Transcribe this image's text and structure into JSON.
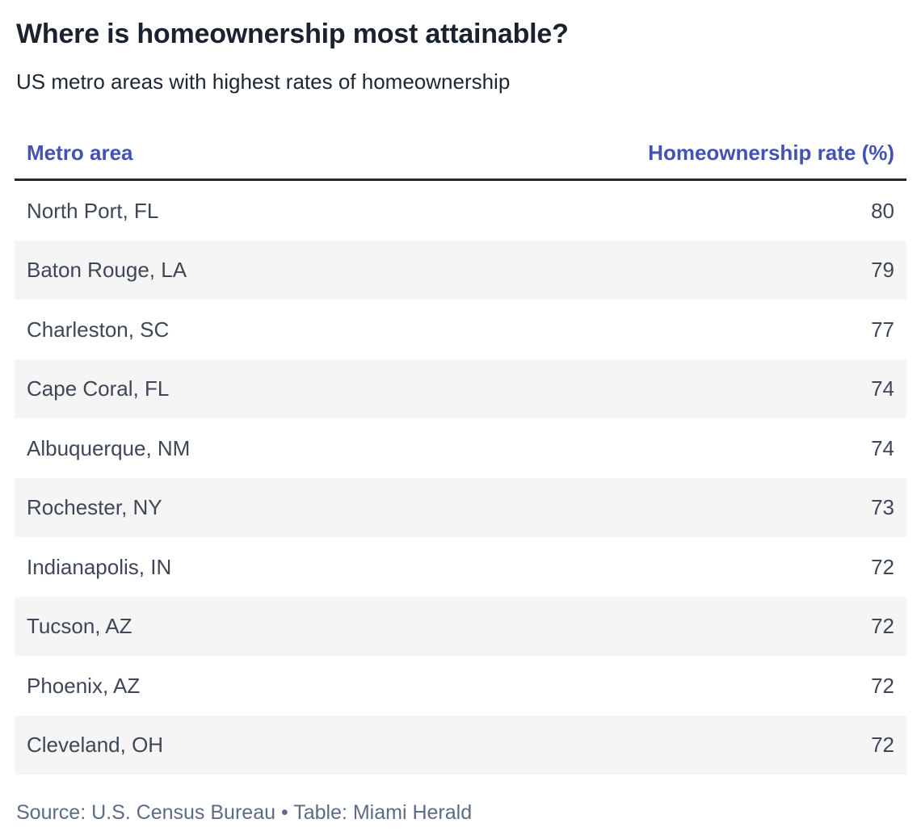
{
  "header": {
    "title": "Where is homeownership most attainable?",
    "subtitle": "US metro areas with highest rates of homeownership"
  },
  "chart_data": {
    "type": "table",
    "title": "Where is homeownership most attainable?",
    "subtitle": "US metro areas with highest rates of homeownership",
    "columns": [
      "Metro area",
      "Homeownership rate (%)"
    ],
    "rows": [
      {
        "metro": "North Port, FL",
        "rate": 80
      },
      {
        "metro": "Baton Rouge, LA",
        "rate": 79
      },
      {
        "metro": "Charleston, SC",
        "rate": 77
      },
      {
        "metro": "Cape Coral, FL",
        "rate": 74
      },
      {
        "metro": "Albuquerque, NM",
        "rate": 74
      },
      {
        "metro": "Rochester, NY",
        "rate": 73
      },
      {
        "metro": "Indianapolis, IN",
        "rate": 72
      },
      {
        "metro": "Tucson, AZ",
        "rate": 72
      },
      {
        "metro": "Phoenix, AZ",
        "rate": 72
      },
      {
        "metro": "Cleveland, OH",
        "rate": 72
      }
    ],
    "value_range": [
      72,
      80
    ],
    "zebra_striping": true,
    "source": "Source: U.S. Census Bureau • Table: Miami Herald"
  },
  "table_header": {
    "metro_label": "Metro area",
    "rate_label": "Homeownership rate (%)"
  },
  "footer": {
    "credit": "Source: U.S. Census Bureau • Table: Miami Herald"
  },
  "colors": {
    "title_text": "#1a2230",
    "header_accent": "#4353b3",
    "row_text": "#3d4757",
    "stripe_bg": "#f5f5f5",
    "divider": "#26282b",
    "footer_text": "#5c6c85",
    "background": "#ffffff"
  }
}
